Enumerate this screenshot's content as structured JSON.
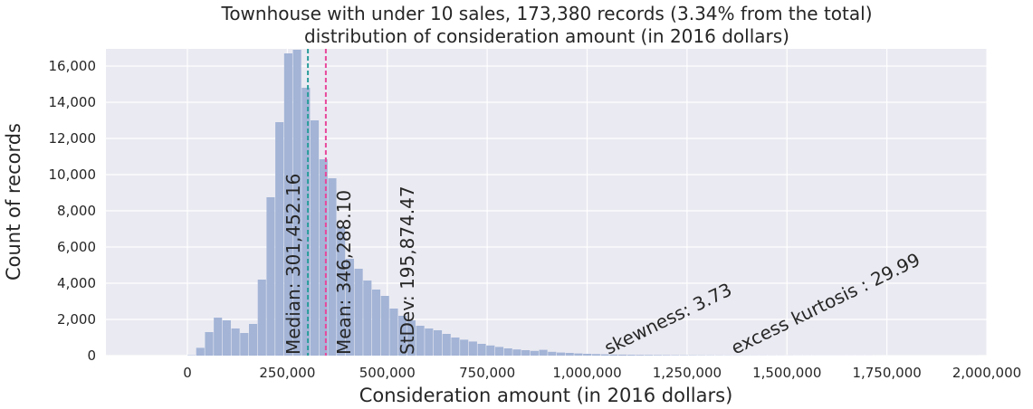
{
  "chart_data": {
    "type": "bar",
    "title_line1": "Townhouse with under 10 sales, 173,380 records (3.34% from the total)",
    "title_line2": "distribution of consideration amount (in 2016 dollars)",
    "xlabel": "Consideration amount (in 2016 dollars)",
    "ylabel": "Count of records",
    "xlim": [
      -175000,
      2000000
    ],
    "ylim": [
      0,
      17500
    ],
    "x_ticks": [
      0,
      250000,
      500000,
      750000,
      1000000,
      1250000,
      1500000,
      1750000,
      2000000
    ],
    "x_tick_labels": [
      "0",
      "250,000",
      "500,000",
      "750,000",
      "1,000,000",
      "1,250,000",
      "1,500,000",
      "1,750,000",
      "2,000,000"
    ],
    "y_ticks": [
      0,
      2000,
      4000,
      6000,
      8000,
      10000,
      12000,
      14000,
      16000
    ],
    "y_tick_labels": [
      "0",
      "2,000",
      "4,000",
      "6,000",
      "8,000",
      "10,000",
      "12,000",
      "14,000",
      "16,000"
    ],
    "grid": true,
    "bin_width": 22000,
    "bin_start": 0,
    "values": [
      20,
      430,
      1300,
      2100,
      1950,
      1500,
      1250,
      1750,
      4200,
      8750,
      12900,
      16700,
      16900,
      14800,
      13000,
      10850,
      9800,
      7100,
      5350,
      4800,
      4150,
      3650,
      3300,
      2600,
      2200,
      1950,
      1650,
      1500,
      1400,
      1200,
      1000,
      880,
      780,
      650,
      560,
      480,
      400,
      340,
      300,
      260,
      320,
      210,
      170,
      150,
      120,
      100,
      85,
      70,
      60,
      55,
      45,
      40,
      35,
      30,
      26,
      22,
      20,
      18,
      16,
      14,
      12,
      11,
      10,
      9,
      8,
      8,
      7,
      6,
      6,
      5,
      5,
      4,
      4,
      4,
      3,
      3,
      3,
      3,
      2,
      2,
      2,
      2,
      2,
      2,
      2,
      2,
      2,
      2,
      2,
      2
    ],
    "median": 301452.16,
    "mean": 346288.1,
    "annotations": {
      "median": "Median: 301,452.16",
      "mean": "Mean: 346,288.10",
      "stdev": "StDev: 195,874.47",
      "skewness": "skewness: 3.73",
      "kurtosis": "excess kurtosis : 29.99"
    },
    "colors": {
      "bars": "#a3b4d6",
      "background": "#eaeaf2",
      "grid": "#ffffff",
      "median_line": "#2a9d9b",
      "mean_line": "#e8479b"
    }
  }
}
